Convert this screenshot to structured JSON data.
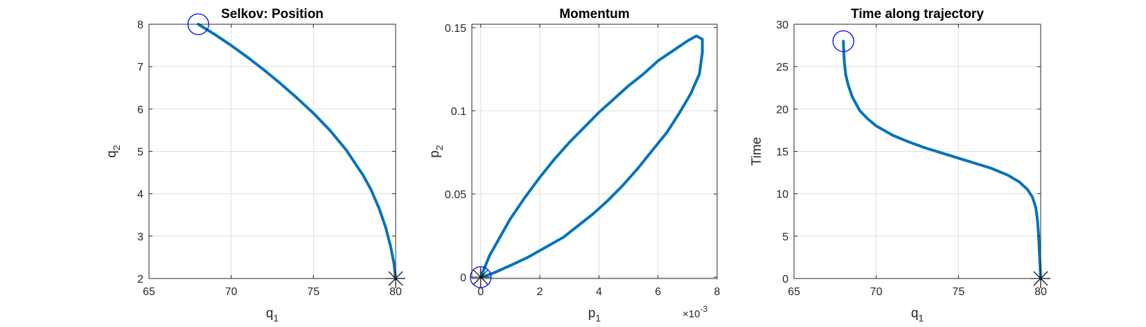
{
  "chart_data": [
    {
      "type": "line",
      "title": "Selkov: Position",
      "xlabel": "q",
      "xlabel_sub": "1",
      "ylabel": "q",
      "ylabel_sub": "2",
      "xlim": [
        65,
        80
      ],
      "ylim": [
        2,
        8
      ],
      "xticks": [
        65,
        70,
        75,
        80
      ],
      "yticks": [
        2,
        3,
        4,
        5,
        6,
        7,
        8
      ],
      "grid": true,
      "series": [
        {
          "color": "#0072BD",
          "x": [
            68.0,
            69.0,
            70.0,
            71.0,
            72.0,
            73.0,
            74.0,
            75.0,
            76.0,
            77.0,
            78.0,
            78.5,
            79.0,
            79.4,
            79.7,
            79.9,
            80.0
          ],
          "y": [
            8.0,
            7.76,
            7.5,
            7.22,
            6.92,
            6.6,
            6.26,
            5.9,
            5.5,
            5.03,
            4.45,
            4.1,
            3.65,
            3.2,
            2.75,
            2.35,
            2.0
          ]
        }
      ],
      "markers": [
        {
          "type": "open-circle",
          "color": "#0000FF",
          "x": 68.0,
          "y": 8.0
        },
        {
          "type": "asterisk",
          "color": "#000000",
          "x": 80.0,
          "y": 2.0
        }
      ]
    },
    {
      "type": "line",
      "title": "Momentum",
      "xlabel": "p",
      "xlabel_sub": "1",
      "ylabel": "p",
      "ylabel_sub": "2",
      "x_exponent_base": "×10",
      "x_exponent": "-3",
      "xlim": [
        -0.0003,
        0.008
      ],
      "ylim": [
        -0.0008,
        0.152
      ],
      "xticks": [
        0,
        0.002,
        0.004,
        0.006,
        0.008
      ],
      "xtick_labels": [
        "0",
        "2",
        "4",
        "6",
        "8"
      ],
      "yticks": [
        0,
        0.05,
        0.1,
        0.15
      ],
      "ytick_labels": [
        "0",
        "0.05",
        "0.1",
        "0.15"
      ],
      "grid": true,
      "series": [
        {
          "color": "#0072BD",
          "x": [
            0.0,
            0.0003,
            0.001,
            0.0015,
            0.002,
            0.0025,
            0.003,
            0.0035,
            0.004,
            0.0045,
            0.005,
            0.0055,
            0.006,
            0.0065,
            0.007,
            0.0073,
            0.0075,
            0.0075,
            0.0074,
            0.0071,
            0.0067,
            0.0063,
            0.0058,
            0.0053,
            0.0048,
            0.0043,
            0.0038,
            0.0033,
            0.0028,
            0.0022,
            0.0016,
            0.001,
            0.0005,
            0.0002,
            0.0
          ],
          "y": [
            0.0,
            0.013,
            0.035,
            0.048,
            0.06,
            0.071,
            0.081,
            0.09,
            0.099,
            0.107,
            0.115,
            0.122,
            0.13,
            0.136,
            0.142,
            0.145,
            0.143,
            0.135,
            0.122,
            0.11,
            0.098,
            0.087,
            0.076,
            0.065,
            0.055,
            0.046,
            0.038,
            0.031,
            0.024,
            0.018,
            0.012,
            0.007,
            0.003,
            0.001,
            0.0
          ]
        }
      ],
      "markers": [
        {
          "type": "open-circle",
          "color": "#0000FF",
          "x": 0.0,
          "y": 0.0
        },
        {
          "type": "asterisk",
          "color": "#000000",
          "x": 0.0,
          "y": 0.0
        }
      ]
    },
    {
      "type": "line",
      "title": "Time along trajectory",
      "xlabel": "q",
      "xlabel_sub": "1",
      "ylabel": "Time",
      "ylabel_sub": "",
      "xlim": [
        65,
        80
      ],
      "ylim": [
        0,
        30
      ],
      "xticks": [
        65,
        70,
        75,
        80
      ],
      "yticks": [
        0,
        5,
        10,
        15,
        20,
        25,
        30
      ],
      "grid": true,
      "series": [
        {
          "color": "#0072BD",
          "x": [
            68.0,
            68.02,
            68.06,
            68.15,
            68.3,
            68.55,
            69.0,
            69.5,
            70.0,
            71.0,
            72.0,
            73.0,
            74.0,
            75.0,
            76.0,
            77.0,
            78.0,
            78.7,
            79.2,
            79.5,
            79.7,
            79.8,
            79.86,
            79.9,
            79.93,
            79.96,
            79.98,
            80.0
          ],
          "y": [
            28.0,
            27.0,
            25.5,
            24.0,
            22.8,
            21.4,
            19.8,
            18.8,
            18.0,
            16.9,
            16.1,
            15.4,
            14.8,
            14.2,
            13.6,
            13.0,
            12.2,
            11.4,
            10.5,
            9.6,
            8.4,
            7.0,
            5.5,
            4.0,
            2.8,
            1.6,
            0.8,
            0.0
          ]
        }
      ],
      "markers": [
        {
          "type": "open-circle",
          "color": "#0000FF",
          "x": 68.0,
          "y": 28.0
        },
        {
          "type": "asterisk",
          "color": "#000000",
          "x": 80.0,
          "y": 0.0
        }
      ]
    }
  ]
}
